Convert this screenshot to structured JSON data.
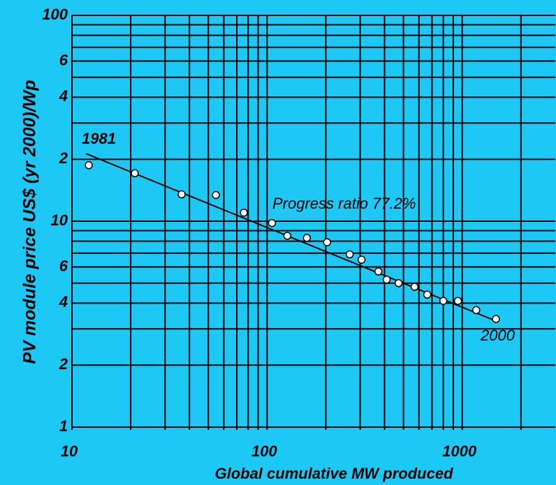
{
  "chart_data": {
    "type": "scatter",
    "x_label": "Global cumulative MW produced",
    "y_label": "PV module price US$ (yr 2000)/Wp",
    "x_scale": "log",
    "y_scale": "log",
    "xlim": [
      10,
      3000
    ],
    "ylim": [
      1,
      100
    ],
    "xticks": [
      10,
      100,
      1000
    ],
    "yticks": [
      1,
      {
        "value": 2,
        "label": "2"
      },
      4,
      6,
      10,
      {
        "value": 20,
        "label": "2"
      },
      {
        "value": 40,
        "label": "4"
      },
      {
        "value": 60,
        "label": "6"
      },
      100
    ],
    "x_minor_grid": [
      20,
      30,
      40,
      50,
      60,
      70,
      80,
      90,
      200,
      300,
      400,
      500,
      600,
      700,
      800,
      900,
      2000
    ],
    "y_minor_grid": [
      3,
      5,
      7,
      8,
      9,
      30,
      50,
      70,
      80,
      90
    ],
    "grid": true,
    "color": "#ffffff",
    "x": [
      12.2,
      21,
      36.5,
      54.7,
      76,
      106,
      127,
      160,
      203,
      265,
      305,
      372,
      410,
      472,
      570,
      662,
      800,
      951,
      1180,
      1490
    ],
    "values": [
      18.7,
      17.1,
      13.5,
      13.4,
      11.0,
      9.8,
      8.5,
      8.3,
      7.9,
      6.9,
      6.5,
      5.7,
      5.2,
      5.0,
      4.8,
      4.4,
      4.1,
      4.1,
      3.7,
      3.35
    ],
    "trend_line": {
      "x": [
        11.8,
        1520
      ],
      "values": [
        21.3,
        3.25
      ]
    },
    "annotations": [
      "1981",
      "Progress  ratio  77.2%",
      "2000"
    ]
  }
}
